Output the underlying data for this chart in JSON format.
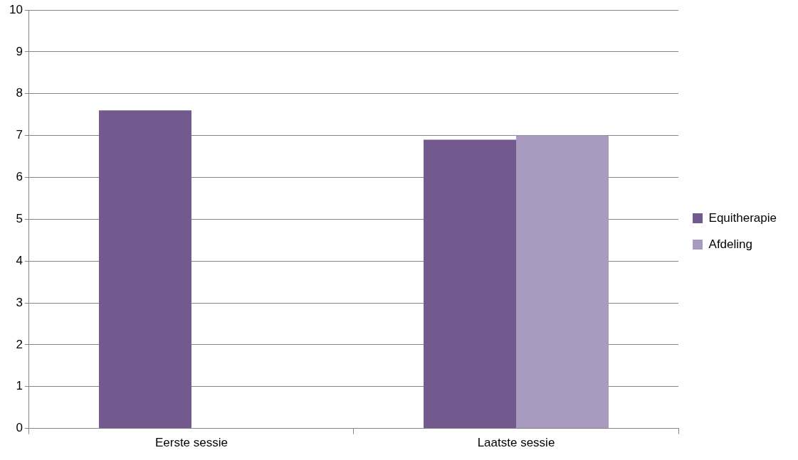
{
  "chart_data": {
    "type": "bar",
    "categories": [
      "Eerste sessie",
      "Laatste sessie"
    ],
    "series": [
      {
        "name": "Equitherapie",
        "color": "#725a8e",
        "values": [
          7.6,
          6.9
        ]
      },
      {
        "name": "Afdeling",
        "color": "#a99bbf",
        "values": [
          null,
          7.0
        ]
      }
    ],
    "ylim": [
      0,
      10
    ],
    "yticks": [
      0,
      1,
      2,
      3,
      4,
      5,
      6,
      7,
      8,
      9,
      10
    ],
    "grid": "y",
    "legend": "right"
  }
}
